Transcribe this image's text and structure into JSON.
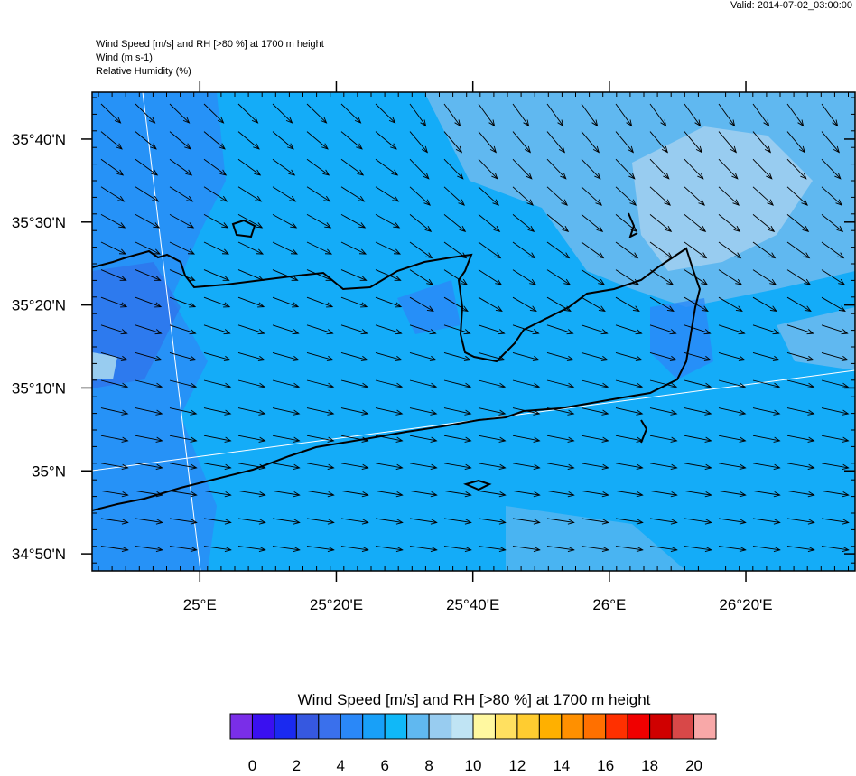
{
  "valid": "Valid: 2014-07-02_03:00:00",
  "header": {
    "title": "Wind Speed [m/s] and RH [>80 %] at 1700 m height",
    "lines": [
      "Wind   (m s-1)",
      "Relative Humidity   (%)"
    ]
  },
  "map": {
    "lon_range": [
      24.737,
      26.6
    ],
    "lat_range": [
      34.799,
      35.761
    ],
    "lat_ticks": [
      {
        "value": 35.6667,
        "label": "35°40'N"
      },
      {
        "value": 35.5,
        "label": "35°30'N"
      },
      {
        "value": 35.3333,
        "label": "35°20'N"
      },
      {
        "value": 35.1667,
        "label": "35°10'N"
      },
      {
        "value": 35,
        "label": "35°N"
      },
      {
        "value": 34.8333,
        "label": "34°50'N"
      }
    ],
    "lon_ticks": [
      {
        "value": 25,
        "label": "25°E"
      },
      {
        "value": 25.3333,
        "label": "25°20'E"
      },
      {
        "value": 25.6667,
        "label": "25°40'E"
      },
      {
        "value": 26,
        "label": "26°E"
      },
      {
        "value": 26.3333,
        "label": "26°20'E"
      }
    ]
  },
  "colorbar": {
    "title": "Wind Speed [m/s] and RH [>80 %] at 1700 m height",
    "range": [
      -1,
      21
    ],
    "colors": [
      "#7a2ee8",
      "#3a10f0",
      "#1a2af0",
      "#3658e0",
      "#3a70ec",
      "#2a88f8",
      "#18a0f8",
      "#10b8f8",
      "#60b8f0",
      "#98ccf0",
      "#c0e4f4",
      "#fff8a0",
      "#ffe060",
      "#ffcc30",
      "#ffb000",
      "#ff9000",
      "#ff7000",
      "#ff3000",
      "#f00000",
      "#d00000",
      "#d84848",
      "#f8a8a8"
    ],
    "ticks": [
      0,
      2,
      4,
      6,
      8,
      10,
      12,
      14,
      16,
      18,
      20
    ]
  }
}
